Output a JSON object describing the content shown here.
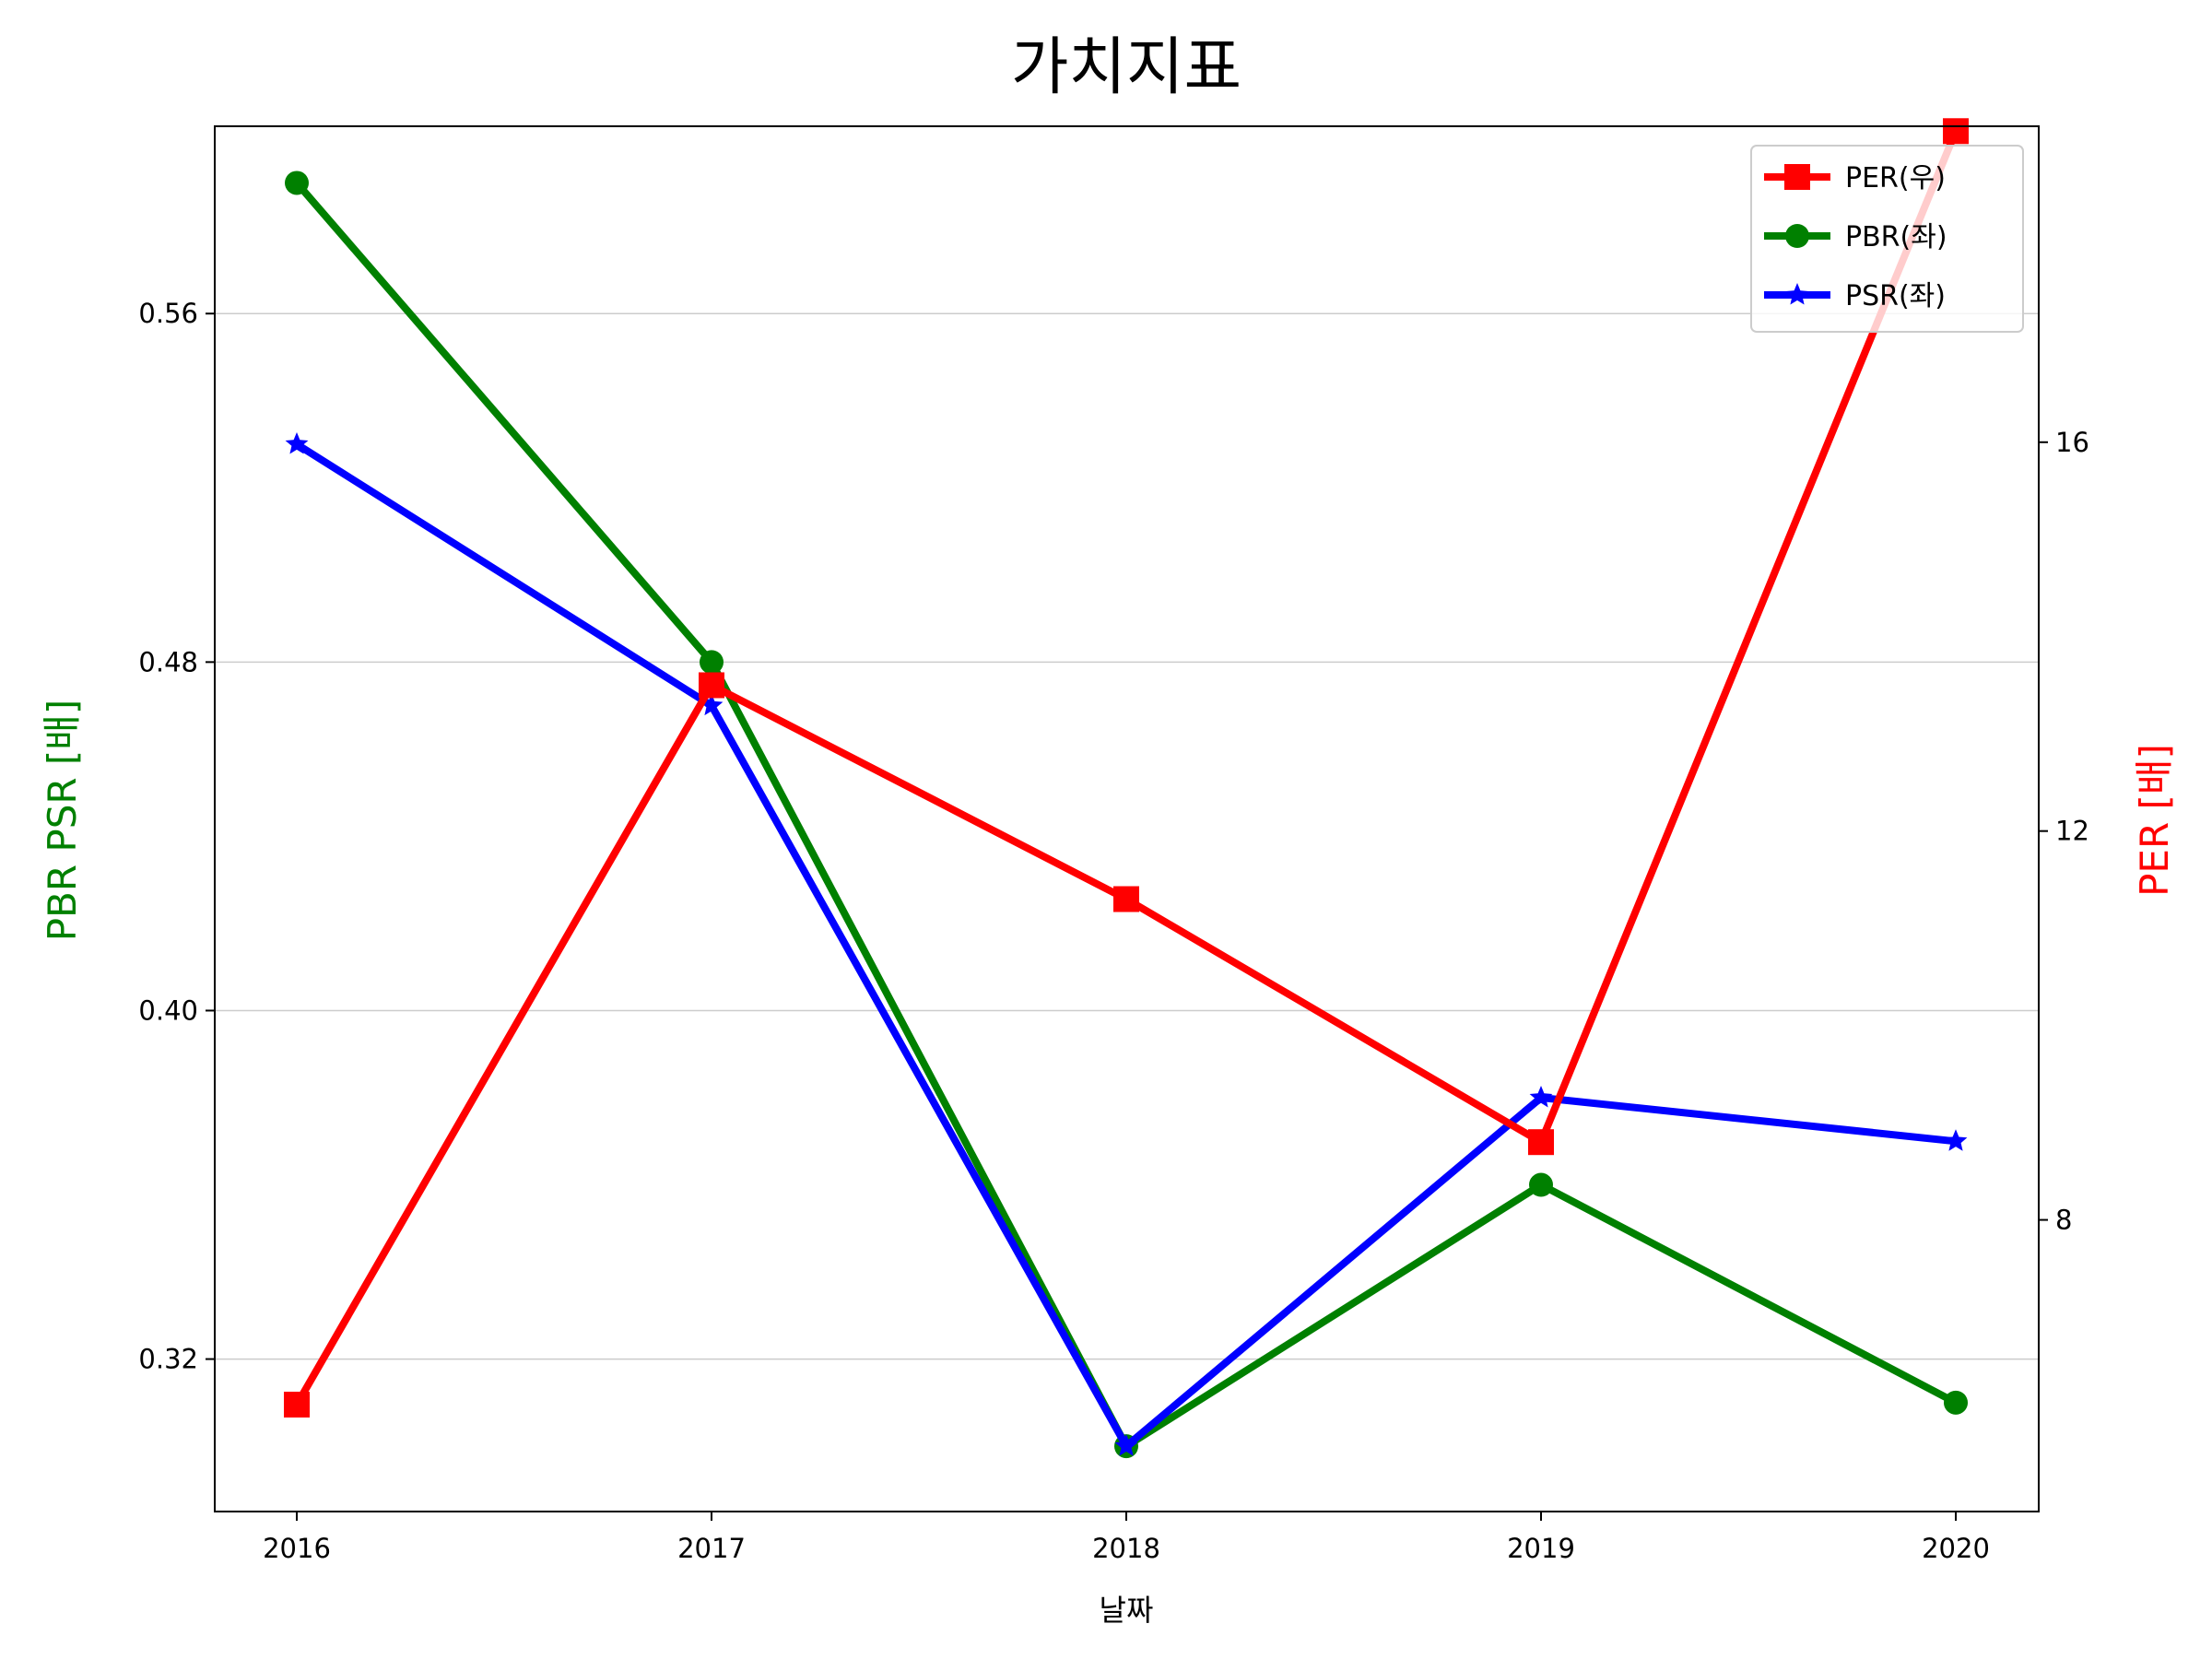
{
  "chart_data": {
    "type": "line",
    "title": "가치지표",
    "xlabel": "날짜",
    "ylabel_left": "PBR PSR [배]",
    "ylabel_right": "PER [배]",
    "categories": [
      "2016",
      "2017",
      "2018",
      "2019",
      "2020"
    ],
    "y_left": {
      "lim": [
        0.285,
        0.603
      ],
      "ticks": [
        0.32,
        0.4,
        0.48,
        0.56
      ],
      "tick_labels": [
        "0.32",
        "0.40",
        "0.48",
        "0.56"
      ],
      "label_color": "#008000",
      "grid": true
    },
    "y_right": {
      "lim": [
        5.0,
        19.25
      ],
      "ticks": [
        8,
        12,
        16
      ],
      "tick_labels": [
        "8",
        "12",
        "16"
      ],
      "label_color": "#ff0000"
    },
    "series": [
      {
        "name": "PER(우)",
        "axis": "right",
        "color": "#ff0000",
        "marker": "square",
        "values": [
          6.1,
          13.5,
          11.3,
          8.8,
          19.2
        ]
      },
      {
        "name": "PBR(좌)",
        "axis": "left",
        "color": "#008000",
        "marker": "circle",
        "values": [
          0.59,
          0.48,
          0.3,
          0.36,
          0.31
        ]
      },
      {
        "name": "PSR(좌)",
        "axis": "left",
        "color": "#0000ff",
        "marker": "star",
        "values": [
          0.53,
          0.47,
          0.3,
          0.38,
          0.37
        ]
      }
    ],
    "legend": {
      "position": "top-right"
    }
  }
}
